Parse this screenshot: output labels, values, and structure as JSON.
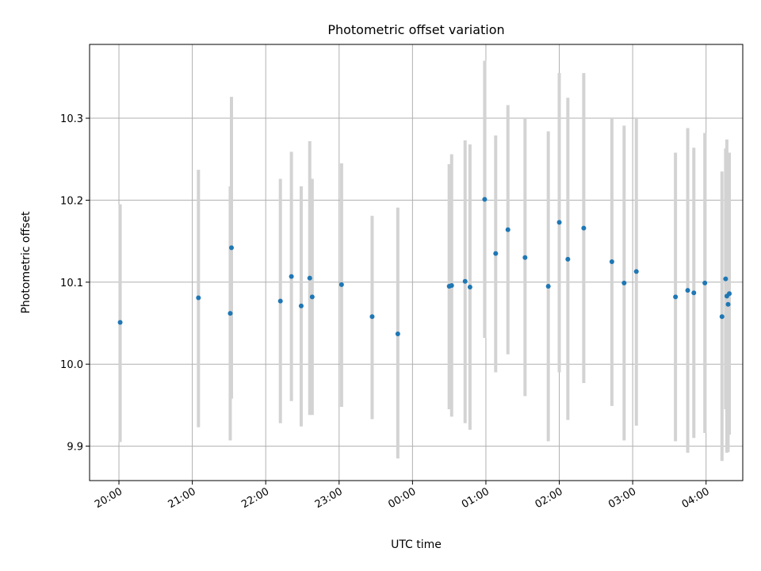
{
  "chart_data": {
    "type": "scatter",
    "title": "Photometric offset variation",
    "xlabel": "UTC time",
    "ylabel": "Photometric offset",
    "grid": true,
    "x_unit": "UTC time",
    "x_ticks": [
      "20:00",
      "21:00",
      "22:00",
      "23:00",
      "00:00",
      "01:00",
      "02:00",
      "03:00",
      "04:00"
    ],
    "y_ticks": [
      "9.9",
      "10.0",
      "10.1",
      "10.2",
      "10.3"
    ],
    "xlim": [
      "19:36",
      "04:30"
    ],
    "ylim": [
      9.858,
      10.39
    ],
    "colors": {
      "point": "#1f77b4",
      "errorbar": "#d3d3d3",
      "grid": "#b0b0b0"
    },
    "series": [
      {
        "points": [
          {
            "x": "20:01",
            "y": 10.051,
            "lo": 9.905,
            "hi": 10.195
          },
          {
            "x": "21:05",
            "y": 10.081,
            "lo": 9.923,
            "hi": 10.237
          },
          {
            "x": "21:31",
            "y": 10.062,
            "lo": 9.907,
            "hi": 10.217
          },
          {
            "x": "21:32",
            "y": 10.142,
            "lo": 9.958,
            "hi": 10.326
          },
          {
            "x": "22:12",
            "y": 10.077,
            "lo": 9.928,
            "hi": 10.226
          },
          {
            "x": "22:21",
            "y": 10.107,
            "lo": 9.955,
            "hi": 10.259
          },
          {
            "x": "22:29",
            "y": 10.071,
            "lo": 9.924,
            "hi": 10.217
          },
          {
            "x": "22:36",
            "y": 10.105,
            "lo": 9.938,
            "hi": 10.272
          },
          {
            "x": "22:38",
            "y": 10.082,
            "lo": 9.938,
            "hi": 10.226
          },
          {
            "x": "23:02",
            "y": 10.097,
            "lo": 9.948,
            "hi": 10.245
          },
          {
            "x": "23:27",
            "y": 10.058,
            "lo": 9.933,
            "hi": 10.181
          },
          {
            "x": "23:48",
            "y": 10.037,
            "lo": 9.885,
            "hi": 10.191
          },
          {
            "x": "00:30",
            "y": 10.095,
            "lo": 9.945,
            "hi": 10.244
          },
          {
            "x": "00:32",
            "y": 10.096,
            "lo": 9.936,
            "hi": 10.256
          },
          {
            "x": "00:43",
            "y": 10.101,
            "lo": 9.928,
            "hi": 10.273
          },
          {
            "x": "00:47",
            "y": 10.094,
            "lo": 9.92,
            "hi": 10.268
          },
          {
            "x": "00:59",
            "y": 10.201,
            "lo": 10.032,
            "hi": 10.37
          },
          {
            "x": "01:08",
            "y": 10.135,
            "lo": 9.99,
            "hi": 10.279
          },
          {
            "x": "01:18",
            "y": 10.164,
            "lo": 10.012,
            "hi": 10.316
          },
          {
            "x": "01:32",
            "y": 10.13,
            "lo": 9.961,
            "hi": 10.3
          },
          {
            "x": "01:51",
            "y": 10.095,
            "lo": 9.906,
            "hi": 10.284
          },
          {
            "x": "02:00",
            "y": 10.173,
            "lo": 9.99,
            "hi": 10.355
          },
          {
            "x": "02:07",
            "y": 10.128,
            "lo": 9.932,
            "hi": 10.325
          },
          {
            "x": "02:20",
            "y": 10.166,
            "lo": 9.977,
            "hi": 10.355
          },
          {
            "x": "02:43",
            "y": 10.125,
            "lo": 9.949,
            "hi": 10.3
          },
          {
            "x": "02:53",
            "y": 10.099,
            "lo": 9.907,
            "hi": 10.291
          },
          {
            "x": "03:03",
            "y": 10.113,
            "lo": 9.925,
            "hi": 10.301
          },
          {
            "x": "03:35",
            "y": 10.082,
            "lo": 9.906,
            "hi": 10.258
          },
          {
            "x": "03:45",
            "y": 10.09,
            "lo": 9.892,
            "hi": 10.288
          },
          {
            "x": "03:50",
            "y": 10.087,
            "lo": 9.91,
            "hi": 10.264
          },
          {
            "x": "03:59",
            "y": 10.099,
            "lo": 9.916,
            "hi": 10.282
          },
          {
            "x": "04:13",
            "y": 10.058,
            "lo": 9.882,
            "hi": 10.235
          },
          {
            "x": "04:16",
            "y": 10.104,
            "lo": 9.945,
            "hi": 10.263
          },
          {
            "x": "04:17",
            "y": 10.083,
            "lo": 9.892,
            "hi": 10.274
          },
          {
            "x": "04:18",
            "y": 10.073,
            "lo": 9.893,
            "hi": 10.253
          },
          {
            "x": "04:19",
            "y": 10.086,
            "lo": 9.914,
            "hi": 10.258
          }
        ]
      }
    ]
  }
}
